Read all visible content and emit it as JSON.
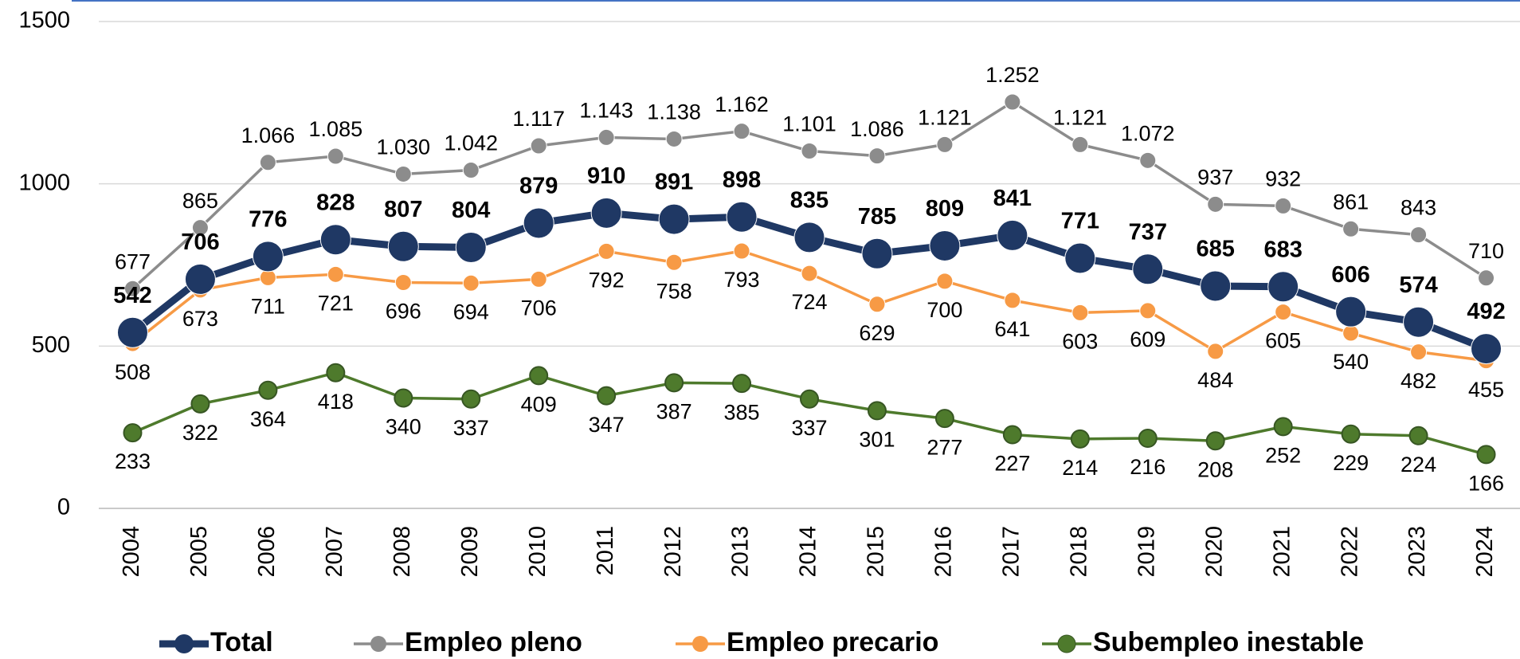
{
  "chart_data": {
    "type": "line",
    "categories": [
      "2004",
      "2005",
      "2006",
      "2007",
      "2008",
      "2009",
      "2010",
      "2011",
      "2012",
      "2013",
      "2014",
      "2015",
      "2016",
      "2017",
      "2018",
      "2019",
      "2020",
      "2021",
      "2022",
      "2023",
      "2024"
    ],
    "series": [
      {
        "name": "Total",
        "color": "#1f3864",
        "values": [
          542,
          706,
          776,
          828,
          807,
          804,
          879,
          910,
          891,
          898,
          835,
          785,
          809,
          841,
          771,
          737,
          685,
          683,
          606,
          574,
          492
        ]
      },
      {
        "name": "Empleo pleno",
        "color": "#8c8c8c",
        "values": [
          677,
          865,
          1066,
          1085,
          1030,
          1042,
          1117,
          1143,
          1138,
          1162,
          1101,
          1086,
          1121,
          1252,
          1121,
          1072,
          937,
          932,
          861,
          843,
          710
        ],
        "value_labels": [
          "677",
          "865",
          "1.066",
          "1.085",
          "1.030",
          "1.042",
          "1.117",
          "1.143",
          "1.138",
          "1.162",
          "1.101",
          "1.086",
          "1.121",
          "1.252",
          "1.121",
          "1.072",
          "937",
          "932",
          "861",
          "843",
          "710"
        ]
      },
      {
        "name": "Empleo precario",
        "color": "#f79a45",
        "values": [
          508,
          673,
          711,
          721,
          696,
          694,
          706,
          792,
          758,
          793,
          724,
          629,
          700,
          641,
          603,
          609,
          484,
          605,
          540,
          482,
          455
        ]
      },
      {
        "name": "Subempleo inestable",
        "color": "#4e7a2c",
        "values": [
          233,
          322,
          364,
          418,
          340,
          337,
          409,
          347,
          387,
          385,
          337,
          301,
          277,
          227,
          214,
          216,
          208,
          252,
          229,
          224,
          166
        ]
      }
    ],
    "ylim": [
      0,
      1500
    ],
    "yticks": [
      0,
      500,
      1000,
      1500
    ],
    "grid": true,
    "legend": "bottom"
  }
}
